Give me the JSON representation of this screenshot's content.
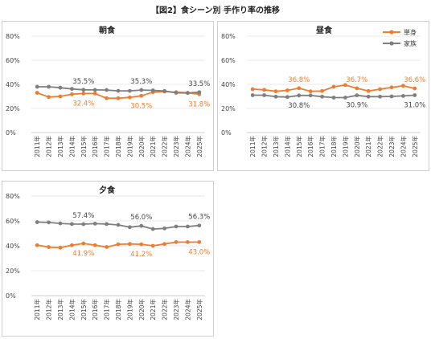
{
  "figure_title": "【図2】食シーン別 手作り率の推移",
  "legend": [
    {
      "name": "単身",
      "color": "#ED7D31"
    },
    {
      "name": "家族",
      "color": "#7F7F7F"
    }
  ],
  "chart_data": [
    {
      "type": "line",
      "title": "朝食",
      "x": [
        "2011年",
        "2012年",
        "2013年",
        "2014年",
        "2015年",
        "2016年",
        "2017年",
        "2018年",
        "2019年",
        "2020年",
        "2021年",
        "2022年",
        "2023年",
        "2024年",
        "2025年"
      ],
      "ylim": [
        0,
        80
      ],
      "yticks": [
        "0%",
        "20%",
        "40%",
        "60%",
        "80%"
      ],
      "series": [
        {
          "name": "単身",
          "color": "#ED7D31",
          "values": [
            33.0,
            29.5,
            30.0,
            31.8,
            32.4,
            32.4,
            28.5,
            28.5,
            29.2,
            30.5,
            33.5,
            34.0,
            33.5,
            33.0,
            31.8
          ]
        },
        {
          "name": "家族",
          "color": "#7F7F7F",
          "values": [
            38.0,
            38.0,
            37.2,
            36.2,
            35.5,
            35.4,
            35.3,
            34.6,
            34.6,
            35.3,
            35.0,
            34.5,
            33.0,
            32.8,
            33.5
          ]
        }
      ],
      "annotations": [
        {
          "series": 1,
          "index": 4,
          "text": "35.5%"
        },
        {
          "series": 1,
          "index": 9,
          "text": "35.3%"
        },
        {
          "series": 1,
          "index": 14,
          "text": "33.5%"
        },
        {
          "series": 0,
          "index": 4,
          "text": "32.4%"
        },
        {
          "series": 0,
          "index": 9,
          "text": "30.5%"
        },
        {
          "series": 0,
          "index": 14,
          "text": "31.8%"
        }
      ]
    },
    {
      "type": "line",
      "title": "昼食",
      "x": [
        "2011年",
        "2012年",
        "2013年",
        "2014年",
        "2015年",
        "2016年",
        "2017年",
        "2018年",
        "2019年",
        "2020年",
        "2021年",
        "2022年",
        "2023年",
        "2024年",
        "2025年"
      ],
      "ylim": [
        0,
        80
      ],
      "yticks": [
        "0%",
        "20%",
        "40%",
        "60%",
        "80%"
      ],
      "series": [
        {
          "name": "単身",
          "color": "#ED7D31",
          "values": [
            36.0,
            35.5,
            34.2,
            35.0,
            36.8,
            34.2,
            34.5,
            38.0,
            39.4,
            36.7,
            34.5,
            36.0,
            37.5,
            38.8,
            36.6
          ]
        },
        {
          "name": "家族",
          "color": "#7F7F7F",
          "values": [
            31.0,
            31.0,
            29.8,
            29.5,
            30.8,
            30.8,
            29.8,
            29.0,
            29.0,
            30.9,
            29.8,
            29.8,
            30.0,
            30.4,
            31.0
          ]
        }
      ],
      "annotations": [
        {
          "series": 0,
          "index": 4,
          "text": "36.8%"
        },
        {
          "series": 0,
          "index": 9,
          "text": "36.7%"
        },
        {
          "series": 0,
          "index": 14,
          "text": "36.6%"
        },
        {
          "series": 1,
          "index": 4,
          "text": "30.8%"
        },
        {
          "series": 1,
          "index": 9,
          "text": "30.9%"
        },
        {
          "series": 1,
          "index": 14,
          "text": "31.0%"
        }
      ]
    },
    {
      "type": "line",
      "title": "夕食",
      "x": [
        "2011年",
        "2012年",
        "2013年",
        "2014年",
        "2015年",
        "2016年",
        "2017年",
        "2018年",
        "2019年",
        "2020年",
        "2021年",
        "2022年",
        "2023年",
        "2024年",
        "2025年"
      ],
      "ylim": [
        0,
        80
      ],
      "yticks": [
        "0%",
        "20%",
        "40%",
        "60%",
        "80%"
      ],
      "series": [
        {
          "name": "単身",
          "color": "#ED7D31",
          "values": [
            40.5,
            39.0,
            38.5,
            40.5,
            41.9,
            40.5,
            39.0,
            41.2,
            41.5,
            41.2,
            40.0,
            41.5,
            43.0,
            43.0,
            43.0
          ]
        },
        {
          "name": "家族",
          "color": "#7F7F7F",
          "values": [
            59.0,
            58.8,
            58.0,
            57.5,
            57.4,
            57.8,
            57.5,
            56.8,
            55.0,
            56.0,
            53.5,
            54.0,
            55.5,
            55.5,
            56.3
          ]
        }
      ],
      "annotations": [
        {
          "series": 1,
          "index": 4,
          "text": "57.4%"
        },
        {
          "series": 1,
          "index": 9,
          "text": "56.0%"
        },
        {
          "series": 1,
          "index": 14,
          "text": "56.3%"
        },
        {
          "series": 0,
          "index": 4,
          "text": "41.9%"
        },
        {
          "series": 0,
          "index": 9,
          "text": "41.2%"
        },
        {
          "series": 0,
          "index": 14,
          "text": "43.0%"
        }
      ]
    }
  ]
}
